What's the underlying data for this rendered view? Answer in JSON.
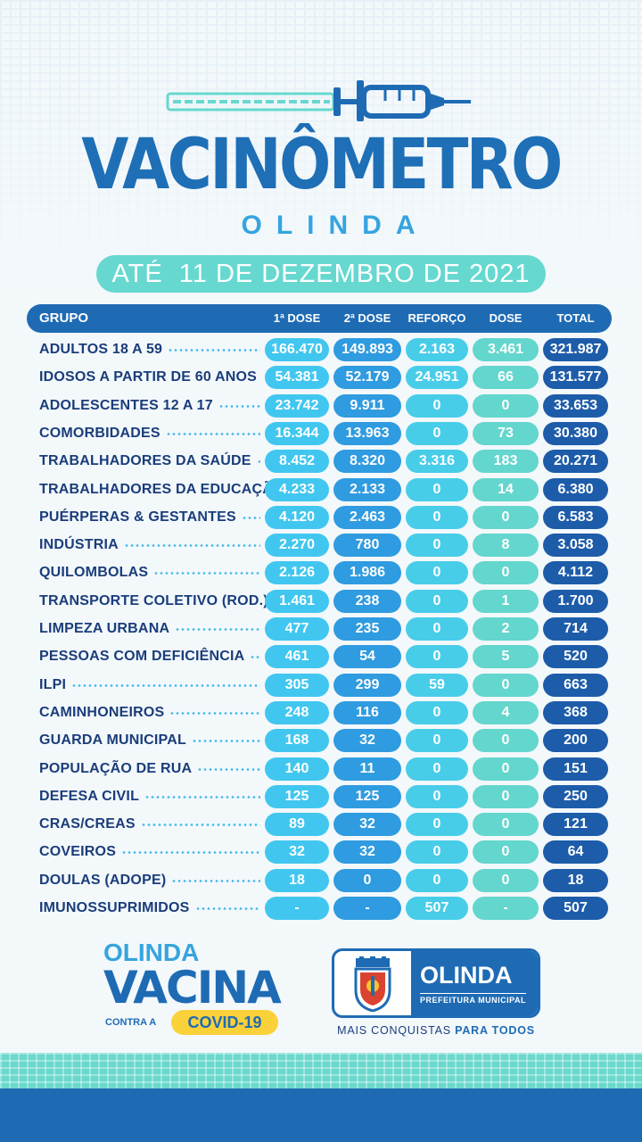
{
  "header": {
    "title": "VACINÔMETRO",
    "subtitle": "OLINDA",
    "date": "ATÉ  11 DE DEZEMBRO DE 2021"
  },
  "table": {
    "columns": [
      "GRUPO",
      "1ª DOSE",
      "2ª DOSE",
      "REFORÇO",
      "DOSE ÚNICA",
      "TOTAL"
    ],
    "rows": [
      {
        "group": "ADULTOS 18 A 59",
        "d1": "166.470",
        "d2": "149.893",
        "reforco": "2.163",
        "unica": "3.461",
        "total": "321.987"
      },
      {
        "group": "IDOSOS A PARTIR DE 60 ANOS",
        "d1": "54.381",
        "d2": "52.179",
        "reforco": "24.951",
        "unica": "66",
        "total": "131.577"
      },
      {
        "group": "ADOLESCENTES 12 A 17",
        "d1": "23.742",
        "d2": "9.911",
        "reforco": "0",
        "unica": "0",
        "total": "33.653"
      },
      {
        "group": "COMORBIDADES",
        "d1": "16.344",
        "d2": "13.963",
        "reforco": "0",
        "unica": "73",
        "total": "30.380"
      },
      {
        "group": "TRABALHADORES DA SAÚDE",
        "d1": "8.452",
        "d2": "8.320",
        "reforco": "3.316",
        "unica": "183",
        "total": "20.271"
      },
      {
        "group": "TRABALHADORES DA EDUCAÇÃO",
        "d1": "4.233",
        "d2": "2.133",
        "reforco": "0",
        "unica": "14",
        "total": "6.380"
      },
      {
        "group": "PUÉRPERAS & GESTANTES",
        "d1": "4.120",
        "d2": "2.463",
        "reforco": "0",
        "unica": "0",
        "total": "6.583"
      },
      {
        "group": "INDÚSTRIA",
        "d1": "2.270",
        "d2": "780",
        "reforco": "0",
        "unica": "8",
        "total": "3.058"
      },
      {
        "group": "QUILOMBOLAS",
        "d1": "2.126",
        "d2": "1.986",
        "reforco": "0",
        "unica": "0",
        "total": "4.112"
      },
      {
        "group": "TRANSPORTE COLETIVO (ROD.)",
        "d1": "1.461",
        "d2": "238",
        "reforco": "0",
        "unica": "1",
        "total": "1.700"
      },
      {
        "group": "LIMPEZA URBANA",
        "d1": "477",
        "d2": "235",
        "reforco": "0",
        "unica": "2",
        "total": "714"
      },
      {
        "group": "PESSOAS COM DEFICIÊNCIA",
        "d1": "461",
        "d2": "54",
        "reforco": "0",
        "unica": "5",
        "total": "520"
      },
      {
        "group": "ILPI",
        "d1": "305",
        "d2": "299",
        "reforco": "59",
        "unica": "0",
        "total": "663"
      },
      {
        "group": "CAMINHONEIROS",
        "d1": "248",
        "d2": "116",
        "reforco": "0",
        "unica": "4",
        "total": "368"
      },
      {
        "group": "GUARDA MUNICIPAL",
        "d1": "168",
        "d2": "32",
        "reforco": "0",
        "unica": "0",
        "total": "200"
      },
      {
        "group": "POPULAÇÃO DE RUA",
        "d1": "140",
        "d2": "11",
        "reforco": "0",
        "unica": "0",
        "total": "151"
      },
      {
        "group": "DEFESA CIVIL",
        "d1": "125",
        "d2": "125",
        "reforco": "0",
        "unica": "0",
        "total": "250"
      },
      {
        "group": "CRAS/CREAS",
        "d1": "89",
        "d2": "32",
        "reforco": "0",
        "unica": "0",
        "total": "121"
      },
      {
        "group": "COVEIROS",
        "d1": "32",
        "d2": "32",
        "reforco": "0",
        "unica": "0",
        "total": "64"
      },
      {
        "group": "DOULAS (ADOPE)",
        "d1": "18",
        "d2": "0",
        "reforco": "0",
        "unica": "0",
        "total": "18"
      },
      {
        "group": "IMUNOSSUPRIMIDOS",
        "d1": "-",
        "d2": "-",
        "reforco": "507",
        "unica": "-",
        "total": "507"
      }
    ]
  },
  "footer": {
    "campaign_line1": "OLINDA",
    "campaign_line2": "VACINA",
    "campaign_line3": "CONTRA A",
    "campaign_badge": "COVID-19",
    "logo_name": "OLINDA",
    "logo_sub": "PREFEITURA MUNICIPAL",
    "tagline_a": "MAIS CONQUISTAS ",
    "tagline_b": "PARA TODOS"
  },
  "colors": {
    "primary": "#1e6bb4",
    "light_blue": "#36a4df",
    "teal": "#66d8cf",
    "dark_text": "#1a3d7a"
  }
}
